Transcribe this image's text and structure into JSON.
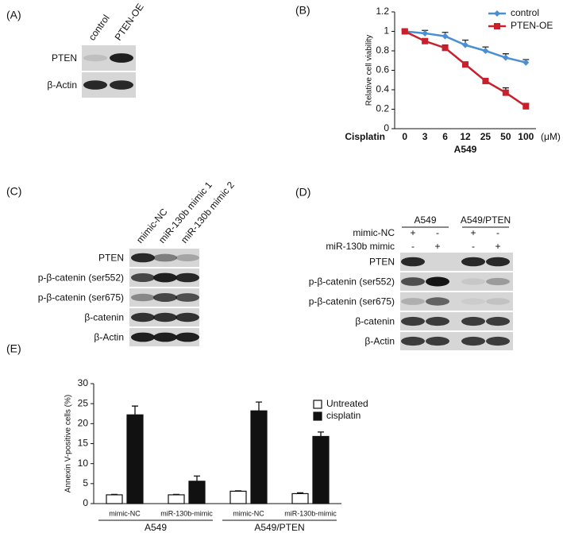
{
  "panel_labels": [
    "(A)",
    "(B)",
    "(C)",
    "(D)",
    "(E)"
  ],
  "blot_a": {
    "columns": [
      "control",
      "PTEN-OE"
    ],
    "rows": [
      "PTEN",
      "β-Actin"
    ]
  },
  "blot_c": {
    "columns": [
      "mimic-NC",
      "miR-130b mimic 1",
      "miR-130b mimic 2"
    ],
    "rows": [
      "PTEN",
      "p-β-catenin (ser552)",
      "p-β-catenin (ser675)",
      "β-catenin",
      "β-Actin"
    ]
  },
  "blot_d": {
    "groups": [
      "A549",
      "A549/PTEN"
    ],
    "treatments": [
      {
        "name": "mimic-NC",
        "signs": [
          "+",
          "-",
          "+",
          "-"
        ]
      },
      {
        "name": "miR-130b mimic",
        "signs": [
          "-",
          "+",
          "-",
          "+"
        ]
      }
    ],
    "rows": [
      "PTEN",
      "p-β-catenin (ser552)",
      "p-β-catenin (ser675)",
      "β-catenin",
      "β-Actin"
    ]
  },
  "chart_data": [
    {
      "type": "line",
      "ylabel": "Relative cell viability",
      "x_prefix": "Cisplatin",
      "x_unit": "(μM)",
      "xlabel": "A549",
      "categories": [
        "0",
        "3",
        "6",
        "12",
        "25",
        "50",
        "100"
      ],
      "series": [
        {
          "name": "control",
          "color": "#4a8fd4",
          "marker": "diamond",
          "values": [
            1,
            0.98,
            0.95,
            0.86,
            0.8,
            0.73,
            0.68
          ],
          "errors": [
            0.02,
            0.03,
            0.04,
            0.05,
            0.04,
            0.04,
            0.03
          ]
        },
        {
          "name": "PTEN-OE",
          "color": "#c8202c",
          "marker": "square",
          "values": [
            1,
            0.9,
            0.83,
            0.66,
            0.49,
            0.37,
            0.23
          ],
          "errors": [
            0.01,
            0.02,
            0.03,
            0.02,
            0.02,
            0.05,
            0.03
          ]
        }
      ],
      "ylim": [
        0,
        1.2
      ],
      "yticks": [
        0,
        0.2,
        0.4,
        0.6,
        0.8,
        1,
        1.2
      ],
      "legend": "top-right"
    },
    {
      "type": "bar",
      "ylabel": "Annexin V-positive cells (%)",
      "categories": [
        "mimic-NC",
        "miR-130b-mimic",
        "mimic-NC",
        "miR-130b-mimic"
      ],
      "groups": [
        "A549",
        "A549/PTEN"
      ],
      "series": [
        {
          "name": "Untreated",
          "color": "#ffffff",
          "values": [
            2.2,
            2.2,
            3.1,
            2.5
          ],
          "errors": [
            0.1,
            0.1,
            0.1,
            0.2
          ]
        },
        {
          "name": "cisplatin",
          "color": "#111111",
          "values": [
            22.2,
            5.6,
            23.2,
            16.8
          ],
          "errors": [
            2.2,
            1.3,
            2.2,
            1.1
          ]
        }
      ],
      "ylim": [
        0,
        30
      ],
      "yticks": [
        0,
        5,
        10,
        15,
        20,
        25,
        30
      ],
      "legend": "top-right"
    }
  ]
}
